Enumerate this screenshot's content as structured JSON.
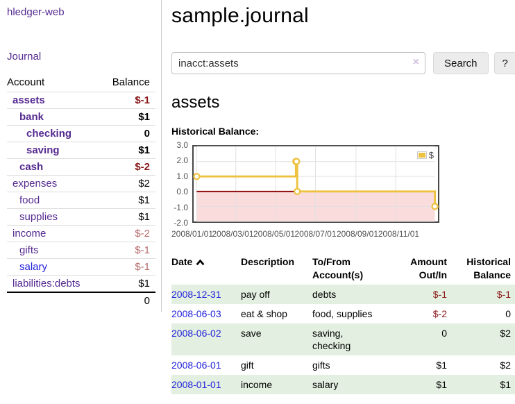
{
  "app": {
    "title": "hledger-web"
  },
  "nav": {
    "journal": "Journal"
  },
  "sidebar": {
    "header": {
      "account": "Account",
      "balance": "Balance"
    },
    "rows": [
      {
        "name": "assets",
        "balance": "$-1",
        "level": 1,
        "bold": true,
        "negative": true,
        "blue": false
      },
      {
        "name": "bank",
        "balance": "$1",
        "level": 2,
        "bold": true,
        "negative": false,
        "blue": false
      },
      {
        "name": "checking",
        "balance": "0",
        "level": 3,
        "bold": true,
        "negative": false,
        "blue": false
      },
      {
        "name": "saving",
        "balance": "$1",
        "level": 3,
        "bold": true,
        "negative": false,
        "blue": false
      },
      {
        "name": "cash",
        "balance": "$-2",
        "level": 2,
        "bold": true,
        "negative": true,
        "blue": false
      },
      {
        "name": "expenses",
        "balance": "$2",
        "level": 1,
        "bold": false,
        "negative": false,
        "blue": false
      },
      {
        "name": "food",
        "balance": "$1",
        "level": 2,
        "bold": false,
        "negative": false,
        "blue": false
      },
      {
        "name": "supplies",
        "balance": "$1",
        "level": 2,
        "bold": false,
        "negative": false,
        "blue": false
      },
      {
        "name": "income",
        "balance": "$-2",
        "level": 1,
        "bold": false,
        "negative": true,
        "blue": false
      },
      {
        "name": "gifts",
        "balance": "$-1",
        "level": 2,
        "bold": false,
        "negative": true,
        "blue": false
      },
      {
        "name": "salary",
        "balance": "$-1",
        "level": 2,
        "bold": false,
        "negative": true,
        "blue": true
      },
      {
        "name": "liabilities:debts",
        "balance": "$1",
        "level": 1,
        "bold": false,
        "negative": false,
        "blue": false
      }
    ],
    "total": "0"
  },
  "main": {
    "title": "sample.journal"
  },
  "search": {
    "value": "inacct:assets",
    "clear": "×",
    "search_button": "Search",
    "help_button": "?"
  },
  "account": {
    "heading": "assets",
    "section_label": "Historical Balance:"
  },
  "chart_data": {
    "type": "line",
    "title": "Historical Balance:",
    "step": true,
    "xlim": [
      0,
      365
    ],
    "ylim": [
      -2,
      3
    ],
    "grid": true,
    "legend": {
      "label": "$",
      "position": "top-right"
    },
    "y_ticks": [
      "3.0",
      "2.0",
      "1.0",
      "0.0",
      "-1.0",
      "-2.0"
    ],
    "x_ticks": [
      {
        "x": 0,
        "label": "2008/01/01"
      },
      {
        "x": 60,
        "label": "2008/03/01"
      },
      {
        "x": 121,
        "label": "2008/05/01"
      },
      {
        "x": 182,
        "label": "2008/07/01"
      },
      {
        "x": 244,
        "label": "2008/09/01"
      },
      {
        "x": 305,
        "label": "2008/11/01"
      }
    ],
    "series": [
      {
        "name": "$",
        "points": [
          {
            "x": 0,
            "y": 1,
            "date": "2008-01-01"
          },
          {
            "x": 152,
            "y": 2,
            "date": "2008-06-01"
          },
          {
            "x": 153,
            "y": 2,
            "date": "2008-06-02"
          },
          {
            "x": 154,
            "y": 0,
            "date": "2008-06-03"
          },
          {
            "x": 365,
            "y": -1,
            "date": "2008-12-31"
          }
        ]
      }
    ]
  },
  "register": {
    "columns": [
      {
        "label": "Date",
        "sorted": "asc"
      },
      {
        "label": "Description"
      },
      {
        "label": "To/From Account(s)"
      },
      {
        "label": "Amount Out/In"
      },
      {
        "label": "Historical Balance"
      }
    ],
    "rows": [
      {
        "date": "2008-12-31",
        "description": "pay off",
        "accounts": "debts",
        "amount": "$-1",
        "amount_negative": true,
        "balance": "$-1",
        "balance_negative": true,
        "shade": true
      },
      {
        "date": "2008-06-03",
        "description": "eat & shop",
        "accounts": "food, supplies",
        "amount": "$-2",
        "amount_negative": true,
        "balance": "0",
        "balance_negative": false,
        "shade": false
      },
      {
        "date": "2008-06-02",
        "description": "save",
        "accounts": "saving, checking",
        "amount": "0",
        "amount_negative": false,
        "balance": "$2",
        "balance_negative": false,
        "shade": true
      },
      {
        "date": "2008-06-01",
        "description": "gift",
        "accounts": "gifts",
        "amount": "$1",
        "amount_negative": false,
        "balance": "$2",
        "balance_negative": false,
        "shade": false
      },
      {
        "date": "2008-01-01",
        "description": "income",
        "accounts": "salary",
        "amount": "$1",
        "amount_negative": false,
        "balance": "$1",
        "balance_negative": false,
        "shade": true
      }
    ]
  },
  "colors": {
    "link_purple": "#552a90",
    "link_blue": "#2222dd",
    "negative": "#8b1717",
    "negative_muted": "#b66a6a",
    "row_green": "#e3efe0",
    "chart_line": "#edc240",
    "chart_negative_fill": "#fbdcdc",
    "chart_zero_line": "#8b0000"
  }
}
